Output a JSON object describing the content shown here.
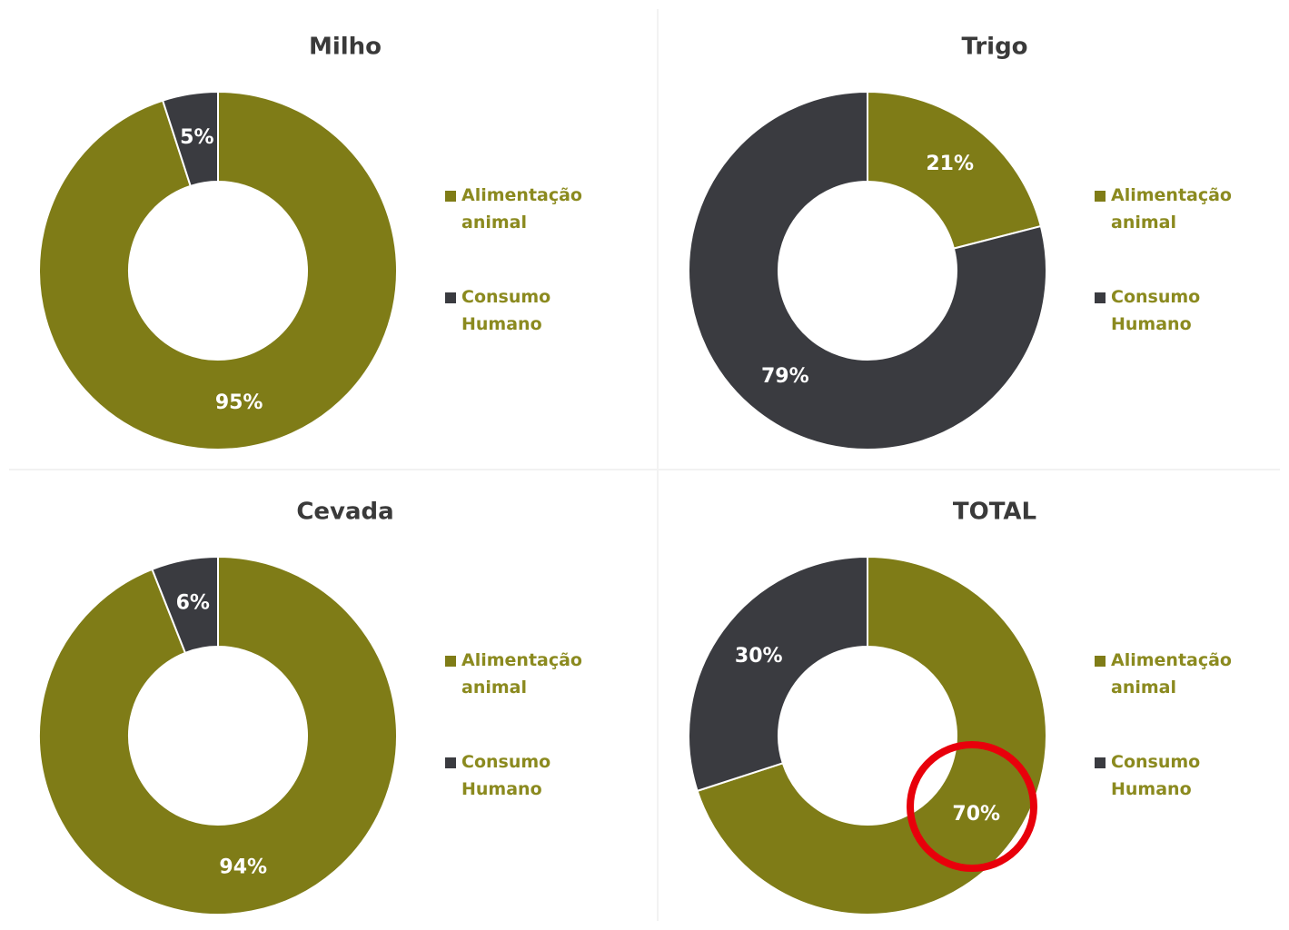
{
  "chart_data": [
    {
      "type": "doughnut",
      "title": "Milho",
      "categories": [
        "Alimentação animal",
        "Consumo Humano"
      ],
      "values": [
        95,
        5
      ],
      "value_labels": [
        "95%",
        "5%"
      ],
      "colors": [
        "#7f7c17",
        "#3a3b40"
      ]
    },
    {
      "type": "doughnut",
      "title": "Trigo",
      "categories": [
        "Alimentação animal",
        "Consumo Humano"
      ],
      "values": [
        21,
        79
      ],
      "value_labels": [
        "21%",
        "79%"
      ],
      "colors": [
        "#7f7c17",
        "#3a3b40"
      ]
    },
    {
      "type": "doughnut",
      "title": "Cevada",
      "categories": [
        "Alimentação animal",
        "Consumo Humano"
      ],
      "values": [
        94,
        6
      ],
      "value_labels": [
        "94%",
        "6%"
      ],
      "colors": [
        "#7f7c17",
        "#3a3b40"
      ]
    },
    {
      "type": "doughnut",
      "title": "TOTAL",
      "categories": [
        "Alimentação animal",
        "Consumo Humano"
      ],
      "values": [
        70,
        30
      ],
      "value_labels": [
        "70%",
        "30%"
      ],
      "colors": [
        "#7f7c17",
        "#3a3b40"
      ]
    }
  ]
}
